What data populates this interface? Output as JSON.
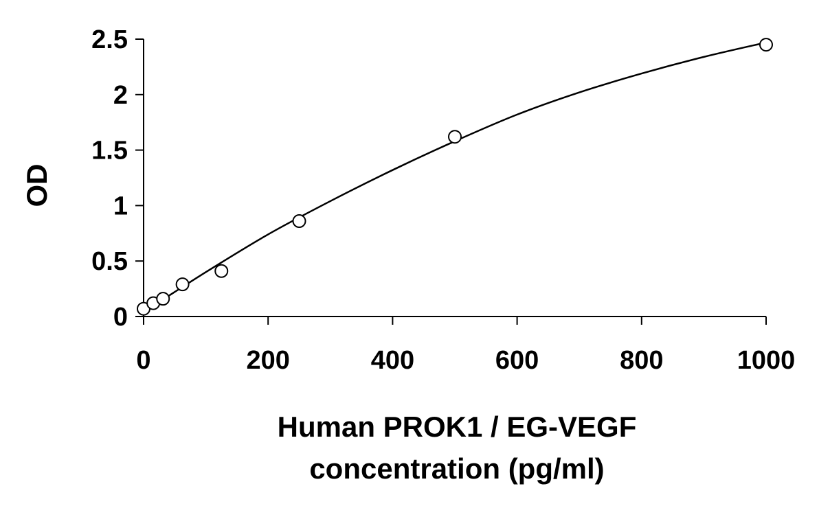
{
  "chart_data": {
    "type": "scatter",
    "title": "",
    "xlabel_lines": [
      "Human PROK1 / EG-VEGF",
      "concentration (pg/ml)"
    ],
    "ylabel": "OD",
    "xlim": [
      0,
      1000
    ],
    "ylim": [
      0,
      2.5
    ],
    "x_ticks": [
      0,
      200,
      400,
      600,
      800,
      1000
    ],
    "x_tick_labels": [
      "0",
      "200",
      "400",
      "600",
      "800",
      "1000"
    ],
    "y_ticks": [
      0,
      0.5,
      1,
      1.5,
      2,
      2.5
    ],
    "y_tick_labels": [
      "0",
      "0.5",
      "1",
      "1.5",
      "2",
      "2.5"
    ],
    "grid": false,
    "legend": "none",
    "series": [
      {
        "x": [
          0,
          15.6,
          31.2,
          62.5,
          125,
          250,
          500,
          1000
        ],
        "y": [
          0.07,
          0.12,
          0.16,
          0.29,
          0.41,
          0.86,
          1.62,
          2.45
        ],
        "marker": "open-circle"
      }
    ],
    "fit_curve": {
      "type": "polynomial",
      "x": [
        0,
        100,
        200,
        300,
        400,
        500,
        600,
        700,
        800,
        900,
        1000
      ],
      "y": [
        0.04,
        0.4,
        0.74,
        1.04,
        1.32,
        1.58,
        1.82,
        2.02,
        2.19,
        2.34,
        2.47
      ]
    },
    "colors": {
      "line": "#000000",
      "marker_fill": "#ffffff",
      "marker_stroke": "#000000"
    }
  }
}
